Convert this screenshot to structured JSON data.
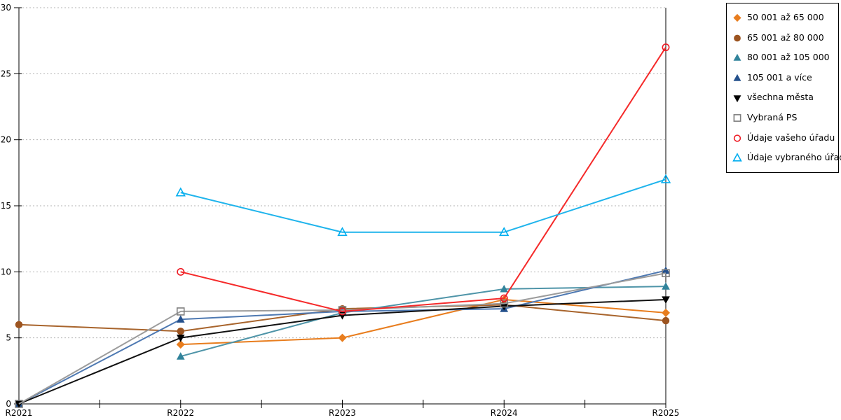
{
  "chart_data": {
    "type": "line",
    "title": "",
    "xlabel": "",
    "ylabel": "",
    "categories": [
      "R2021",
      "R2022",
      "R2023",
      "R2024",
      "R2025"
    ],
    "y_axis": {
      "min": 0,
      "max": 30,
      "tick_interval": 5,
      "ticks": [
        0,
        5,
        10,
        15,
        20,
        25,
        30
      ]
    },
    "grid": "horizontal-dashed",
    "gridline_color": "#b3b3b3",
    "axis_color": "#000000",
    "legend_position": "top-right",
    "x_minor_ticks": true,
    "series": [
      {
        "name": "50 001 až 65 000",
        "marker": "diamond-filled",
        "color": "#E87D1E",
        "line_color": "#E87D1E",
        "values": [
          null,
          4.5,
          5,
          7.9,
          6.9
        ]
      },
      {
        "name": "65 001 až 80 000",
        "marker": "circle-filled",
        "color": "#9C5420",
        "line_color": "#A8642C",
        "values": [
          6,
          5.5,
          7.2,
          7.5,
          6.3
        ]
      },
      {
        "name": "80 001 až 105 000",
        "marker": "triangle-up-filled",
        "color": "#31839B",
        "line_color": "#4E94A8",
        "values": [
          null,
          3.6,
          6.9,
          8.7,
          8.9
        ]
      },
      {
        "name": "105 001 a více",
        "marker": "triangle-up-filled",
        "color": "#24508C",
        "line_color": "#4E79B2",
        "values": [
          0,
          6.4,
          7,
          7.2,
          10.1
        ]
      },
      {
        "name": "všechna města",
        "marker": "triangle-down-filled",
        "color": "#000000",
        "line_color": "#111111",
        "values": [
          0,
          5,
          6.7,
          7.4,
          7.9
        ]
      },
      {
        "name": "Vybraná PS",
        "marker": "square-open",
        "color": "#7F7F7F",
        "line_color": "#9C9C9C",
        "values": [
          0,
          7,
          7.1,
          7.6,
          9.9
        ]
      },
      {
        "name": "Údaje vašeho úřadu",
        "marker": "circle-open",
        "color": "#EE1C25",
        "line_color": "#F52A2A",
        "values": [
          null,
          10,
          7,
          8,
          27
        ]
      },
      {
        "name": "Údaje vybraného úřadu",
        "marker": "triangle-up-open",
        "color": "#00AEEF",
        "line_color": "#1FB4EC",
        "values": [
          null,
          16,
          13,
          13,
          17
        ]
      }
    ]
  }
}
